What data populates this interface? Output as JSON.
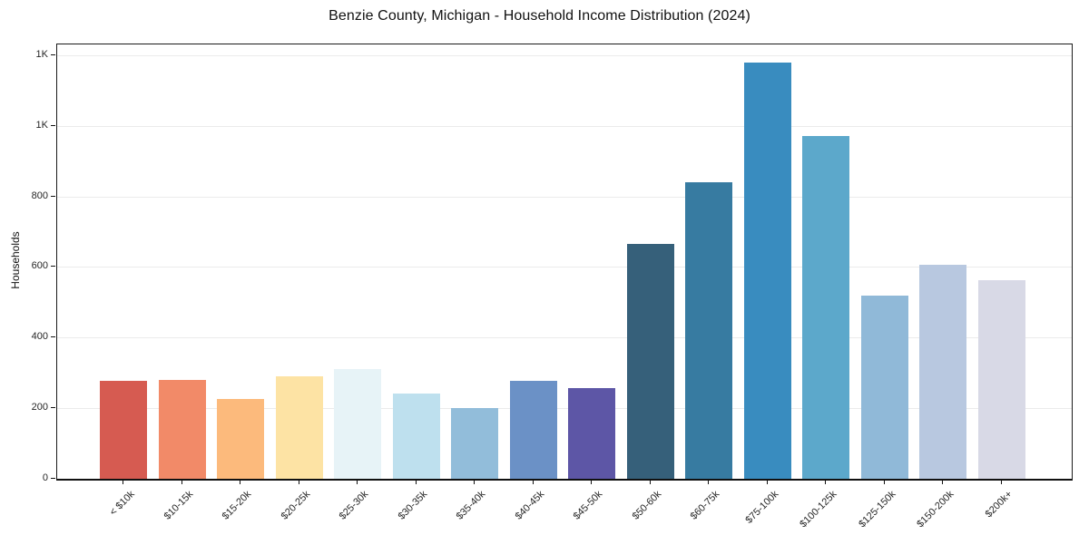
{
  "title": "Benzie County, Michigan - Household Income Distribution (2024)",
  "chart_data": {
    "type": "bar",
    "title": "Benzie County, Michigan - Household Income Distribution (2024)",
    "xlabel": "",
    "ylabel": "Households",
    "categories": [
      "< $10k",
      "$10-15k",
      "$15-20k",
      "$20-25k",
      "$25-30k",
      "$30-35k",
      "$35-40k",
      "$40-45k",
      "$45-50k",
      "$50-60k",
      "$60-75k",
      "$75-100k",
      "$100-125k",
      "$125-150k",
      "$150-200k",
      "$200k+"
    ],
    "values": [
      277,
      280,
      226,
      291,
      311,
      242,
      201,
      277,
      257,
      666,
      842,
      1181,
      973,
      520,
      608,
      563
    ],
    "bar_colors": [
      "#d65b51",
      "#f28a68",
      "#fcba7c",
      "#fde3a4",
      "#e7f3f7",
      "#bee0ee",
      "#92bdda",
      "#6b91c6",
      "#5d56a6",
      "#36607a",
      "#377ba1",
      "#398cbf",
      "#5ca8cb",
      "#90b9d8",
      "#b8c8e0",
      "#d8d9e6"
    ],
    "ylim": [
      0,
      1233
    ],
    "yticks": {
      "values": [
        0,
        200,
        400,
        600,
        800,
        1000,
        1200
      ],
      "labels": [
        "0",
        "200",
        "400",
        "600",
        "800",
        "1K",
        "1K"
      ]
    },
    "grid": "horizontal",
    "gridline_color": "#ebebeb",
    "background": "#ffffff",
    "legend": "none"
  }
}
